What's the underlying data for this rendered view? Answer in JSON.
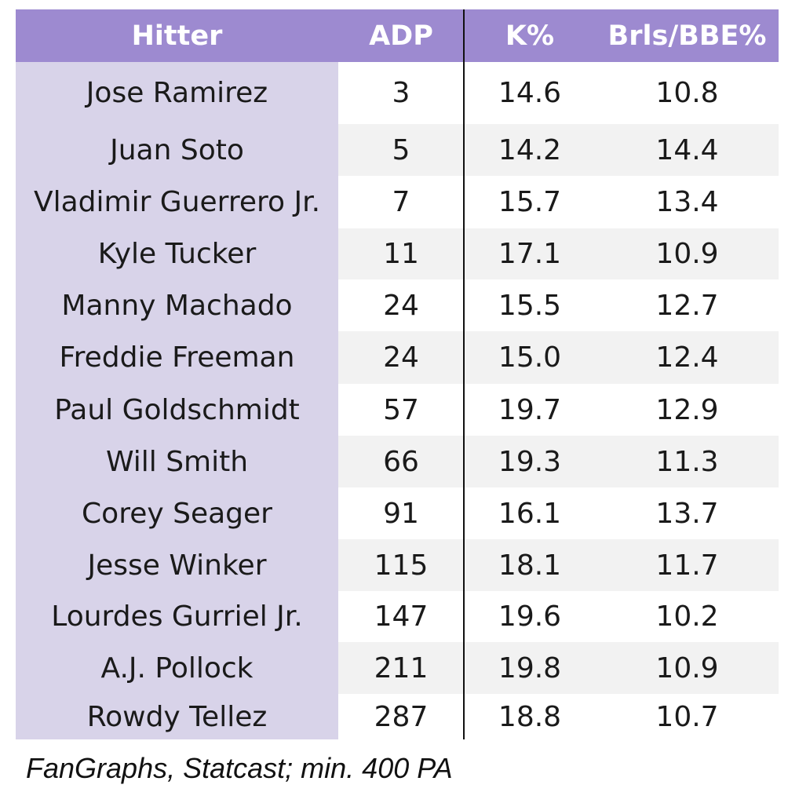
{
  "chart_data": {
    "type": "table",
    "columns": [
      "Hitter",
      "ADP",
      "K%",
      "Brls/BBE%"
    ],
    "rows": [
      [
        "Jose Ramirez",
        "3",
        "14.6",
        "10.8"
      ],
      [
        "Juan Soto",
        "5",
        "14.2",
        "14.4"
      ],
      [
        "Vladimir Guerrero Jr.",
        "7",
        "15.7",
        "13.4"
      ],
      [
        "Kyle Tucker",
        "11",
        "17.1",
        "10.9"
      ],
      [
        "Manny Machado",
        "24",
        "15.5",
        "12.7"
      ],
      [
        "Freddie Freeman",
        "24",
        "15.0",
        "12.4"
      ],
      [
        "Paul Goldschmidt",
        "57",
        "19.7",
        "12.9"
      ],
      [
        "Will Smith",
        "66",
        "19.3",
        "11.3"
      ],
      [
        "Corey Seager",
        "91",
        "16.1",
        "13.7"
      ],
      [
        "Jesse Winker",
        "115",
        "18.1",
        "11.7"
      ],
      [
        "Lourdes Gurriel Jr.",
        "147",
        "19.6",
        "10.2"
      ],
      [
        "A.J. Pollock",
        "211",
        "19.8",
        "10.9"
      ],
      [
        "Rowdy Tellez",
        "287",
        "18.8",
        "10.7"
      ]
    ],
    "source": "FanGraphs, Statcast; min. 400 PA",
    "colors": {
      "header_bg": "#9d8ad0",
      "header_text": "#ffffff",
      "hitter_col_bg": "#d8d3e9",
      "alt_row_bg": "#f2f2f2",
      "divider": "#111111"
    }
  }
}
